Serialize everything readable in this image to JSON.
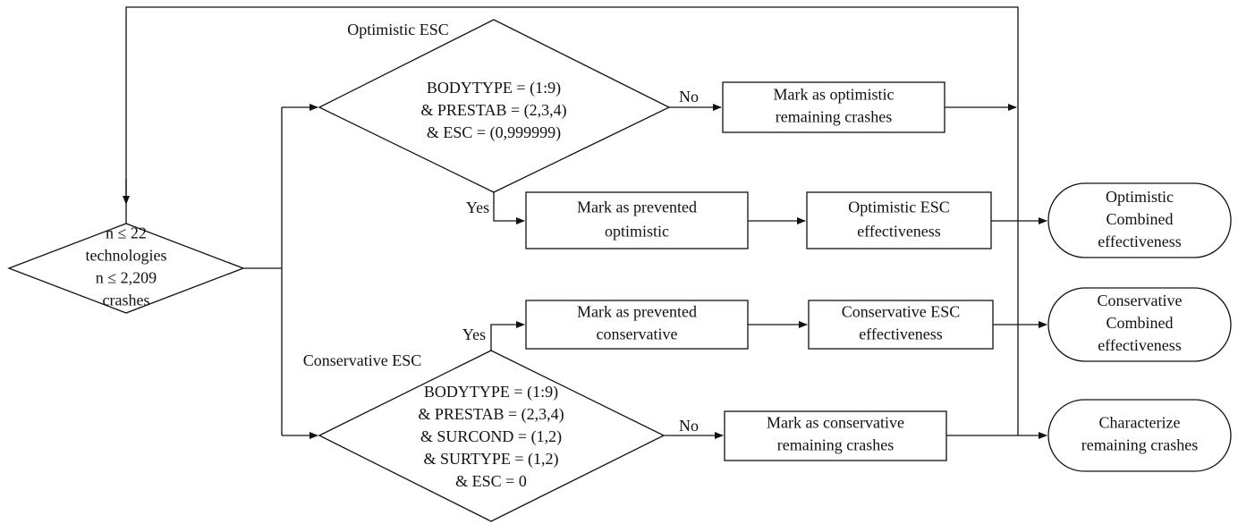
{
  "nodes": [
    {
      "lines": [
        "n ≤ 22",
        "technologies",
        "n ≤ 2,209",
        "crashes"
      ]
    },
    {
      "title": "Optimistic ESC",
      "lines": [
        "BODYTYPE = (1:9)",
        "& PRESTAB = (2,3,4)",
        "& ESC = (0,999999)"
      ]
    },
    {
      "lines": [
        "Mark as optimistic",
        "remaining crashes"
      ]
    },
    {
      "lines": [
        "Mark as prevented",
        "optimistic"
      ]
    },
    {
      "lines": [
        "Optimistic ESC",
        "effectiveness"
      ]
    },
    {
      "lines": [
        "Optimistic",
        "Combined",
        "effectiveness"
      ]
    },
    {
      "lines": [
        "Mark as prevented",
        "conservative"
      ]
    },
    {
      "lines": [
        "Conservative ESC",
        "effectiveness"
      ]
    },
    {
      "lines": [
        "Conservative",
        "Combined",
        "effectiveness"
      ]
    },
    {
      "title": "Conservative ESC",
      "lines": [
        "BODYTYPE = (1:9)",
        "& PRESTAB = (2,3,4)",
        "& SURCOND = (1,2)",
        "& SURTYPE = (1,2)",
        "& ESC = 0"
      ]
    },
    {
      "lines": [
        "Mark as conservative",
        "remaining crashes"
      ]
    },
    {
      "lines": [
        "Characterize",
        "remaining crashes"
      ]
    }
  ],
  "edges": [
    {
      "label": "No"
    },
    {
      "label": "Yes"
    },
    {
      "label": "Yes"
    },
    {
      "label": "No"
    }
  ]
}
